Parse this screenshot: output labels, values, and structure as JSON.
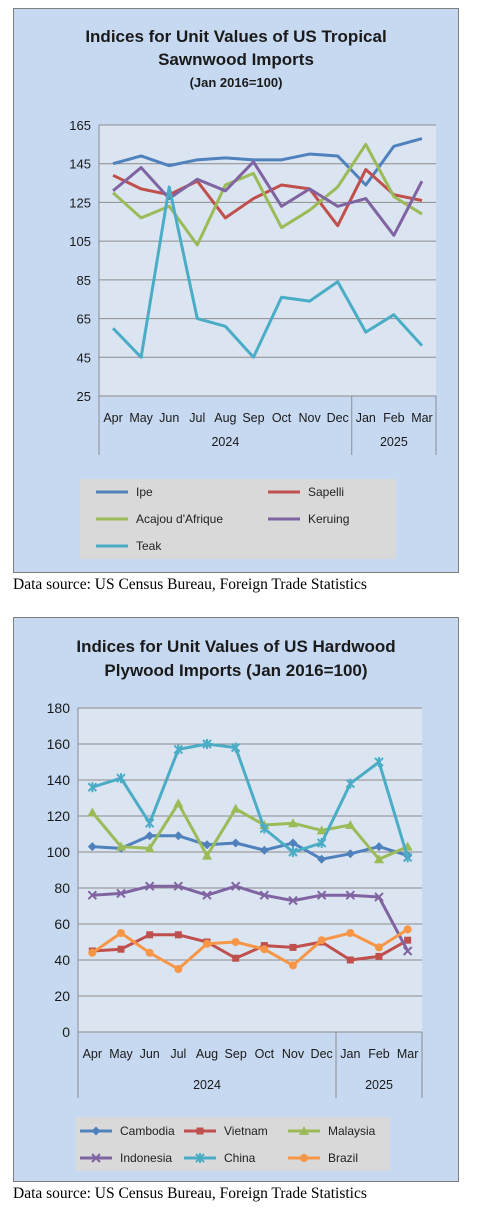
{
  "charts": [
    {
      "title_lines": [
        "Indices for Unit Values of US Tropical",
        "Sawnwood Imports"
      ],
      "subtitle": "(Jan 2016=100)",
      "source": "Data source: US Census Bureau, Foreign Trade Statistics"
    },
    {
      "title_lines": [
        "Indices for Unit Values of US Hardwood",
        "Plywood Imports (Jan 2016=100)"
      ],
      "subtitle": "",
      "source": "Data source: US Census Bureau, Foreign Trade Statistics"
    }
  ],
  "chart_data": [
    {
      "type": "line",
      "title": "Indices for Unit Values of US Tropical Sawnwood Imports",
      "subtitle": "(Jan 2016=100)",
      "categories": [
        "Apr",
        "May",
        "Jun",
        "Jul",
        "Aug",
        "Sep",
        "Oct",
        "Nov",
        "Dec",
        "Jan",
        "Feb",
        "Mar"
      ],
      "year_groups": [
        {
          "label": "2024",
          "span": 9
        },
        {
          "label": "2025",
          "span": 3
        }
      ],
      "yticks": [
        25,
        45,
        65,
        85,
        105,
        125,
        145,
        165
      ],
      "ylim": [
        25,
        165
      ],
      "grid": true,
      "legend_position": "bottom",
      "series": [
        {
          "name": "Ipe",
          "color": "#4f81bd",
          "marker": "none",
          "values": [
            145,
            149,
            144,
            147,
            148,
            147,
            147,
            150,
            149,
            134,
            154,
            158
          ]
        },
        {
          "name": "Sapelli",
          "color": "#c0504d",
          "marker": "none",
          "values": [
            139,
            132,
            129,
            136,
            117,
            127,
            134,
            132,
            113,
            142,
            129,
            126
          ]
        },
        {
          "name": "Acajou d'Afrique",
          "color": "#9bbb59",
          "marker": "none",
          "values": [
            130,
            117,
            123,
            103,
            134,
            140,
            112,
            121,
            133,
            155,
            128,
            119
          ]
        },
        {
          "name": "Keruing",
          "color": "#8064a2",
          "marker": "none",
          "values": [
            131,
            143,
            127,
            137,
            131,
            146,
            123,
            132,
            123,
            127,
            108,
            136
          ]
        },
        {
          "name": "Teak",
          "color": "#4bacc6",
          "marker": "none",
          "values": [
            60,
            45,
            133,
            65,
            61,
            45,
            76,
            74,
            84,
            58,
            67,
            51
          ]
        }
      ]
    },
    {
      "type": "line",
      "title": "Indices for Unit Values of US Hardwood Plywood Imports (Jan 2016=100)",
      "categories": [
        "Apr",
        "May",
        "Jun",
        "Jul",
        "Aug",
        "Sep",
        "Oct",
        "Nov",
        "Dec",
        "Jan",
        "Feb",
        "Mar"
      ],
      "year_groups": [
        {
          "label": "2024",
          "span": 9
        },
        {
          "label": "2025",
          "span": 3
        }
      ],
      "yticks": [
        0,
        20,
        40,
        60,
        80,
        100,
        120,
        140,
        160,
        180
      ],
      "ylim": [
        0,
        180
      ],
      "grid": true,
      "legend_position": "bottom",
      "series": [
        {
          "name": "Cambodia",
          "color": "#4f81bd",
          "marker": "diamond",
          "values": [
            103,
            102,
            109,
            109,
            104,
            105,
            101,
            105,
            96,
            99,
            103,
            98
          ]
        },
        {
          "name": "Vietnam",
          "color": "#c0504d",
          "marker": "square",
          "values": [
            45,
            46,
            54,
            54,
            50,
            41,
            48,
            47,
            50,
            40,
            42,
            51
          ]
        },
        {
          "name": "Malaysia",
          "color": "#9bbb59",
          "marker": "triangle",
          "values": [
            122,
            103,
            102,
            127,
            98,
            124,
            115,
            116,
            112,
            115,
            96,
            103
          ]
        },
        {
          "name": "Indonesia",
          "color": "#8064a2",
          "marker": "x",
          "values": [
            76,
            77,
            81,
            81,
            76,
            81,
            76,
            73,
            76,
            76,
            75,
            45
          ]
        },
        {
          "name": "China",
          "color": "#4bacc6",
          "marker": "star",
          "values": [
            136,
            141,
            116,
            157,
            160,
            158,
            113,
            100,
            105,
            138,
            150,
            97
          ]
        },
        {
          "name": "Brazil",
          "color": "#f79646",
          "marker": "circle",
          "values": [
            44,
            55,
            44,
            35,
            49,
            50,
            46,
            37,
            51,
            55,
            47,
            57
          ]
        }
      ]
    }
  ]
}
